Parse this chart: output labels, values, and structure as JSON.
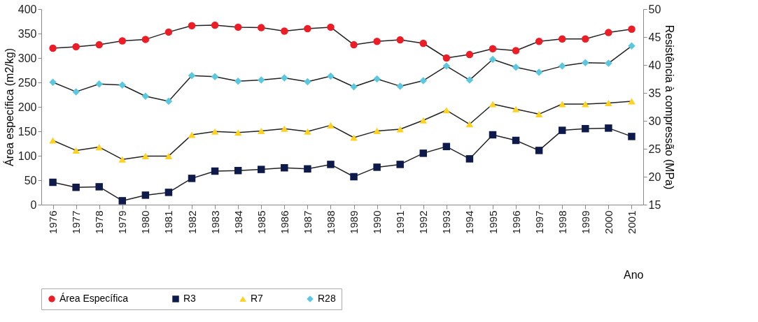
{
  "chart_data": {
    "type": "line",
    "xlabel": "Ano",
    "ylabel": "Área específica (m2/kg)",
    "y2label": "Resistência à compressão (MPa)",
    "categories": [
      "1976",
      "1977",
      "1978",
      "1979",
      "1980",
      "1981",
      "1982",
      "1983",
      "1984",
      "1985",
      "1986",
      "1987",
      "1988",
      "1989",
      "1990",
      "1991",
      "1992",
      "1993",
      "1994",
      "1995",
      "1996",
      "1997",
      "1998",
      "1999",
      "2000",
      "2001"
    ],
    "ylim": [
      0,
      400
    ],
    "yticks": [
      0,
      50,
      100,
      150,
      200,
      250,
      300,
      350,
      400
    ],
    "y2lim": [
      15,
      50
    ],
    "y2ticks": [
      15,
      20,
      25,
      30,
      35,
      40,
      45,
      50
    ],
    "legend": "bottom",
    "grid": false,
    "series": [
      {
        "name": "Área Específica",
        "color": "#ee1c25",
        "marker": "circle",
        "values": [
          320,
          323,
          327,
          335,
          338,
          353,
          366,
          367,
          363,
          362,
          355,
          360,
          363,
          327,
          334,
          337,
          330,
          300,
          307,
          319,
          315,
          334,
          339,
          339,
          352,
          359
        ]
      },
      {
        "name": "R3",
        "color": "#0d1a4a",
        "marker": "square",
        "axis": "y2",
        "values": [
          19.0,
          18.1,
          18.2,
          15.7,
          16.7,
          17.2,
          19.7,
          21.0,
          21.1,
          21.3,
          21.6,
          21.4,
          22.2,
          20.0,
          21.7,
          22.2,
          24.2,
          25.4,
          23.2,
          27.5,
          26.5,
          24.7,
          28.3,
          28.6,
          28.7,
          27.2
        ]
      },
      {
        "name": "R7",
        "color": "#ffd21f",
        "marker": "triangle",
        "axis": "y2",
        "values": [
          26.5,
          24.7,
          25.3,
          23.1,
          23.7,
          23.7,
          27.5,
          28.1,
          27.9,
          28.2,
          28.6,
          28.1,
          29.2,
          27.0,
          28.2,
          28.5,
          30.1,
          31.9,
          29.4,
          33.0,
          32.1,
          31.2,
          33.0,
          33.0,
          33.2,
          33.5
        ]
      },
      {
        "name": "R28",
        "color": "#5bc8e0",
        "marker": "diamond",
        "axis": "y2",
        "values": [
          36.9,
          35.2,
          36.6,
          36.4,
          34.4,
          33.5,
          38.1,
          37.9,
          37.1,
          37.3,
          37.7,
          37.0,
          38.0,
          36.1,
          37.5,
          36.2,
          37.2,
          39.8,
          37.3,
          41.0,
          39.6,
          38.7,
          39.8,
          40.4,
          40.3,
          43.4
        ]
      }
    ]
  }
}
